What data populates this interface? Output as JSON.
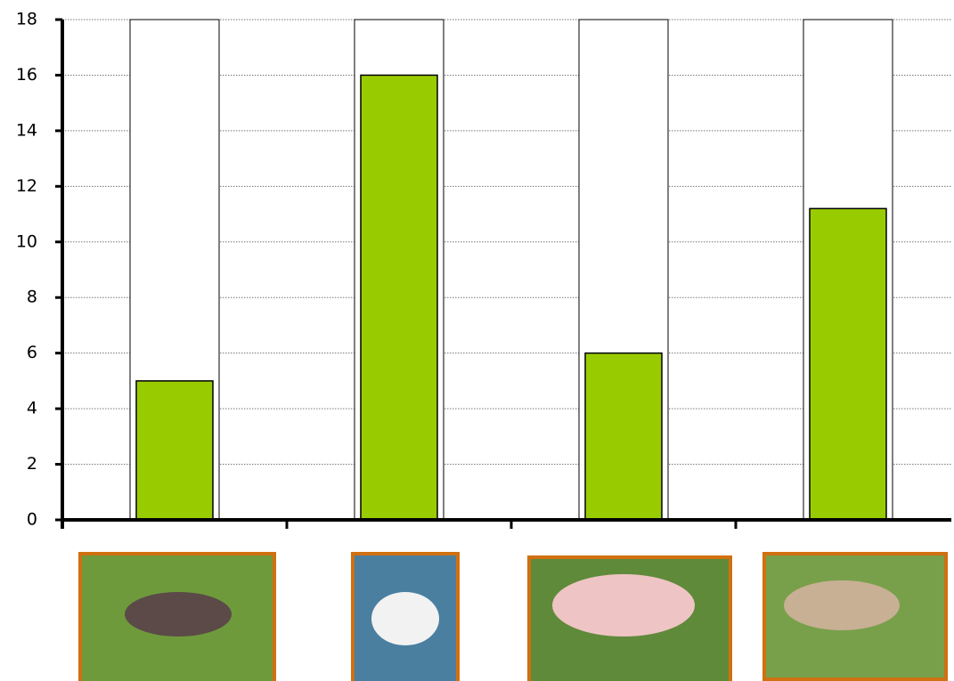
{
  "chart_data": {
    "type": "bar",
    "categories": [
      null,
      null,
      null,
      null
    ],
    "values": [
      5,
      16,
      6,
      11.2
    ],
    "color": "#99cc00",
    "ylim": [
      0,
      18
    ],
    "yticks": [
      0,
      2,
      4,
      6,
      8,
      10,
      12,
      14,
      16,
      18
    ],
    "grid": true
  }
}
